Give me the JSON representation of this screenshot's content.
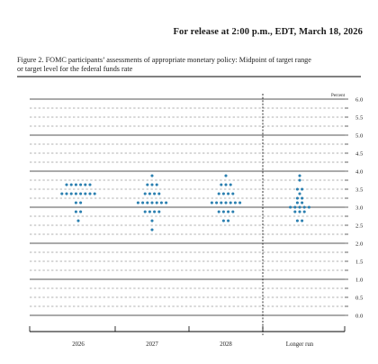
{
  "header": {
    "release_text": "For release at 2:00 p.m., EDT, March 18, 2026"
  },
  "figure": {
    "caption_line1": "Figure 2.  FOMC participants’ assessments of appropriate monetary policy:  Midpoint of target range",
    "caption_line2": "or target level for the federal funds rate"
  },
  "colors": {
    "dot": "#2a7fb0",
    "major_grid": "#555555",
    "minor_grid": "#666666",
    "frame": "#000000",
    "text": "#222222"
  },
  "chart_data": {
    "type": "scatter",
    "title": "",
    "ylabel": "Percent",
    "xlabel": "",
    "ylim": [
      0,
      6.0
    ],
    "y_ticks": [
      "6.0",
      "5.5",
      "5.0",
      "4.5",
      "4.0",
      "3.5",
      "3.0",
      "2.5",
      "2.0",
      "1.5",
      "1.0",
      "0.5",
      "0.0"
    ],
    "categories": [
      "2026",
      "2027",
      "2028",
      "Longer run"
    ],
    "dot_counts": [
      [
        {
          "rate": 3.625,
          "count": 6
        },
        {
          "rate": 3.375,
          "count": 8
        },
        {
          "rate": 3.125,
          "count": 2
        },
        {
          "rate": 2.875,
          "count": 2
        },
        {
          "rate": 2.625,
          "count": 1
        }
      ],
      [
        {
          "rate": 3.875,
          "count": 1
        },
        {
          "rate": 3.625,
          "count": 3
        },
        {
          "rate": 3.375,
          "count": 4
        },
        {
          "rate": 3.125,
          "count": 7
        },
        {
          "rate": 2.875,
          "count": 4
        },
        {
          "rate": 2.625,
          "count": 1
        },
        {
          "rate": 2.375,
          "count": 1
        }
      ],
      [
        {
          "rate": 3.875,
          "count": 1
        },
        {
          "rate": 3.625,
          "count": 3
        },
        {
          "rate": 3.375,
          "count": 4
        },
        {
          "rate": 3.125,
          "count": 7
        },
        {
          "rate": 2.875,
          "count": 4
        },
        {
          "rate": 2.625,
          "count": 2
        }
      ],
      [
        {
          "rate": 3.875,
          "count": 1
        },
        {
          "rate": 3.75,
          "count": 1
        },
        {
          "rate": 3.5,
          "count": 2
        },
        {
          "rate": 3.375,
          "count": 1
        },
        {
          "rate": 3.25,
          "count": 2
        },
        {
          "rate": 3.125,
          "count": 2
        },
        {
          "rate": 3.0,
          "count": 5
        },
        {
          "rate": 2.875,
          "count": 3
        },
        {
          "rate": 2.625,
          "count": 2
        }
      ]
    ],
    "grid": true,
    "legend": "none"
  }
}
